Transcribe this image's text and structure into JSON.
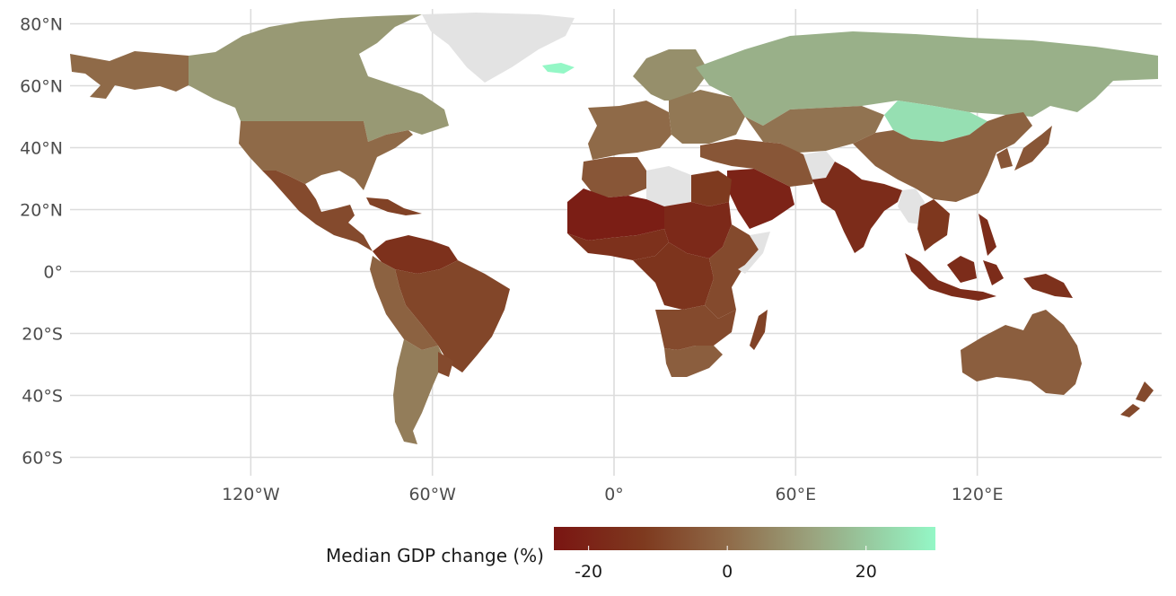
{
  "map": {
    "projection": "equirectangular",
    "lon_range": [
      -180,
      180
    ],
    "lat_range": [
      -60,
      84
    ],
    "latitude_ticks": [
      {
        "value": 80,
        "label": "80°N"
      },
      {
        "value": 60,
        "label": "60°N"
      },
      {
        "value": 40,
        "label": "40°N"
      },
      {
        "value": 20,
        "label": "20°N"
      },
      {
        "value": 0,
        "label": "0°"
      },
      {
        "value": -20,
        "label": "20°S"
      },
      {
        "value": -40,
        "label": "40°S"
      },
      {
        "value": -60,
        "label": "60°S"
      }
    ],
    "longitude_ticks": [
      {
        "value": -120,
        "label": "120°W"
      },
      {
        "value": -60,
        "label": "60°W"
      },
      {
        "value": 0,
        "label": "0°"
      },
      {
        "value": 60,
        "label": "60°E"
      },
      {
        "value": 120,
        "label": "120°E"
      }
    ],
    "no_data_color": "#e3e3e3",
    "regions": [
      {
        "name": "Alaska",
        "value": 0
      },
      {
        "name": "Canada",
        "value": 10
      },
      {
        "name": "Greenland",
        "value": null
      },
      {
        "name": "Iceland",
        "value": 30
      },
      {
        "name": "United States",
        "value": 0
      },
      {
        "name": "Mexico & Central America",
        "value": -8
      },
      {
        "name": "Cuba & Caribbean",
        "value": -10
      },
      {
        "name": "Venezuela & Guianas",
        "value": -15
      },
      {
        "name": "Brazil",
        "value": -9
      },
      {
        "name": "Peru & Bolivia",
        "value": -2
      },
      {
        "name": "Argentina & Chile",
        "value": 4
      },
      {
        "name": "Uruguay",
        "value": -8
      },
      {
        "name": "Scandinavia",
        "value": 8
      },
      {
        "name": "Western Europe",
        "value": 0
      },
      {
        "name": "Eastern Europe",
        "value": 3
      },
      {
        "name": "Russia",
        "value": 15
      },
      {
        "name": "Mongolia",
        "value": 25
      },
      {
        "name": "Kazakhstan & Central Asia",
        "value": 2
      },
      {
        "name": "China",
        "value": -2
      },
      {
        "name": "Japan & Korea",
        "value": -5
      },
      {
        "name": "Turkey & Iran",
        "value": -5
      },
      {
        "name": "Afghanistan",
        "value": null
      },
      {
        "name": "North Africa",
        "value": -5
      },
      {
        "name": "Libya",
        "value": null
      },
      {
        "name": "Egypt",
        "value": -12
      },
      {
        "name": "Arabian Peninsula",
        "value": -20
      },
      {
        "name": "West Africa Sahel",
        "value": -22
      },
      {
        "name": "Sudan & Chad",
        "value": -18
      },
      {
        "name": "West Africa coast",
        "value": -15
      },
      {
        "name": "Central Africa",
        "value": -14
      },
      {
        "name": "East Africa",
        "value": -8
      },
      {
        "name": "Somalia",
        "value": null
      },
      {
        "name": "Southern Africa",
        "value": -8
      },
      {
        "name": "South Africa",
        "value": -3
      },
      {
        "name": "Madagascar",
        "value": -10
      },
      {
        "name": "India & Pakistan",
        "value": -17
      },
      {
        "name": "Myanmar",
        "value": null
      },
      {
        "name": "Southeast Asia",
        "value": -13
      },
      {
        "name": "Indonesia & Philippines",
        "value": -17
      },
      {
        "name": "Papua New Guinea",
        "value": -15
      },
      {
        "name": "Australia",
        "value": -3
      },
      {
        "name": "New Zealand",
        "value": -8
      }
    ]
  },
  "legend": {
    "title": "Median GDP change (%)",
    "min": -25,
    "max": 30,
    "ticks": [
      {
        "value": -20,
        "label": "-20"
      },
      {
        "value": 0,
        "label": "0"
      },
      {
        "value": 20,
        "label": "20"
      }
    ],
    "color_stops": [
      {
        "value": -25,
        "color": "#7a1512"
      },
      {
        "value": -12,
        "color": "#7e3a1f"
      },
      {
        "value": 0,
        "color": "#8f6a48"
      },
      {
        "value": 12,
        "color": "#9aa27d"
      },
      {
        "value": 30,
        "color": "#94f7c6"
      }
    ]
  }
}
